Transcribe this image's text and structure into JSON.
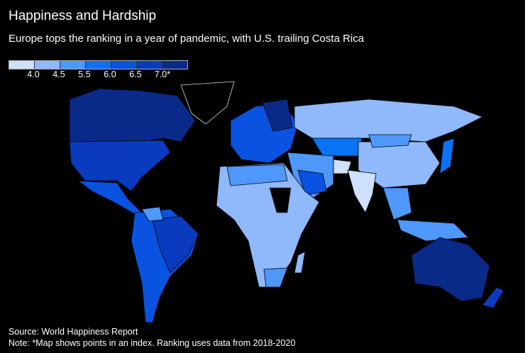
{
  "title": "Happiness and Hardship",
  "subtitle": "Europe tops the ranking in a year of pandemic, with U.S. trailing Costa Rica",
  "legend": {
    "colors": [
      "#cfe0fb",
      "#8fb9fb",
      "#4f98fb",
      "#0a73f5",
      "#0a52e0",
      "#0a3bbf",
      "#0a2a8a"
    ],
    "ticks": [
      "4.0",
      "4.5",
      "5.5",
      "6.0",
      "6.5",
      "7.0*"
    ]
  },
  "source": "Source: World Happiness Report",
  "note": "Note: *Map shows points in an index. Ranking uses data from 2018-2020"
}
